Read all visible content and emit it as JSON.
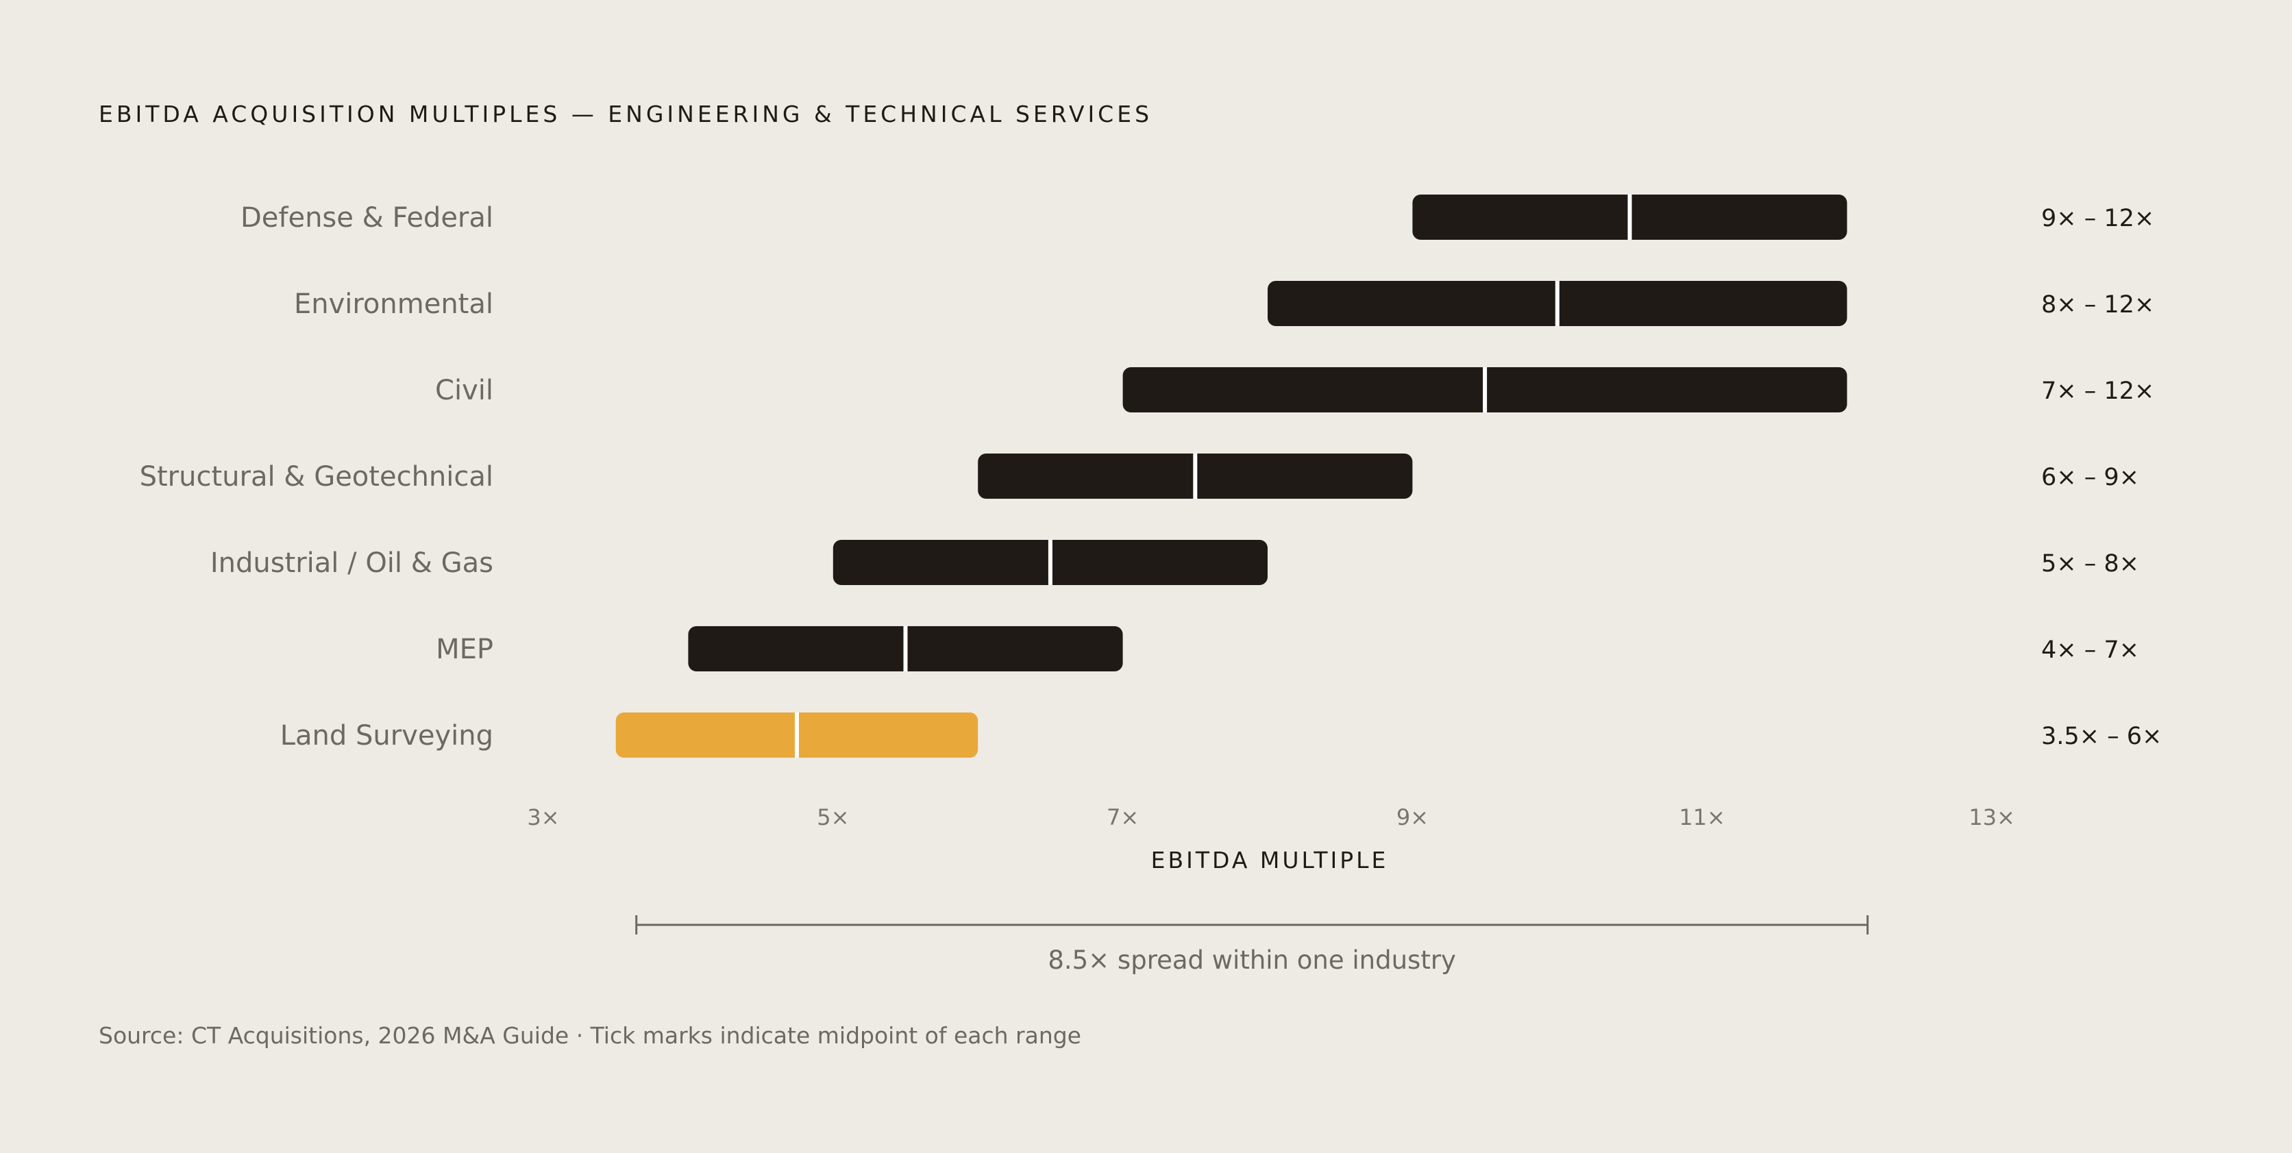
{
  "chart_data": {
    "type": "bar",
    "subtype": "range",
    "title": "EBITDA ACQUISITION MULTIPLES — ENGINEERING & TECHNICAL SERVICES",
    "xlabel": "EBITDA MULTIPLE",
    "xlim": [
      3,
      13
    ],
    "xticks": [
      3,
      5,
      7,
      9,
      11,
      13
    ],
    "xtick_labels": [
      "3×",
      "5×",
      "7×",
      "9×",
      "11×",
      "13×"
    ],
    "grid": false,
    "legend": "none",
    "categories": [
      "Defense & Federal",
      "Environmental",
      "Civil",
      "Structural & Geotechnical",
      "Industrial / Oil & Gas",
      "MEP",
      "Land Surveying"
    ],
    "low": [
      9,
      8,
      7,
      6,
      5,
      4,
      3.5
    ],
    "high": [
      12,
      12,
      12,
      9,
      8,
      7,
      6
    ],
    "midpoint": [
      10.5,
      10,
      9.5,
      7.5,
      6.5,
      5.5,
      4.75
    ],
    "range_labels": [
      "9× – 12×",
      "8× – 12×",
      "7× – 12×",
      "6× – 9×",
      "5× – 8×",
      "4× – 7×",
      "3.5× – 6×"
    ],
    "highlight_index": 6,
    "colors": {
      "bar": "#1F1A16",
      "highlight": "#E8A83A",
      "midpoint_tick": "#FFFFFF"
    },
    "annotation": {
      "text": "8.5× spread within one industry",
      "from": 3.5,
      "to": 12
    }
  },
  "footer": {
    "source": "Source: CT Acquisitions, 2026 M&A Guide · Tick marks indicate midpoint of each range"
  }
}
